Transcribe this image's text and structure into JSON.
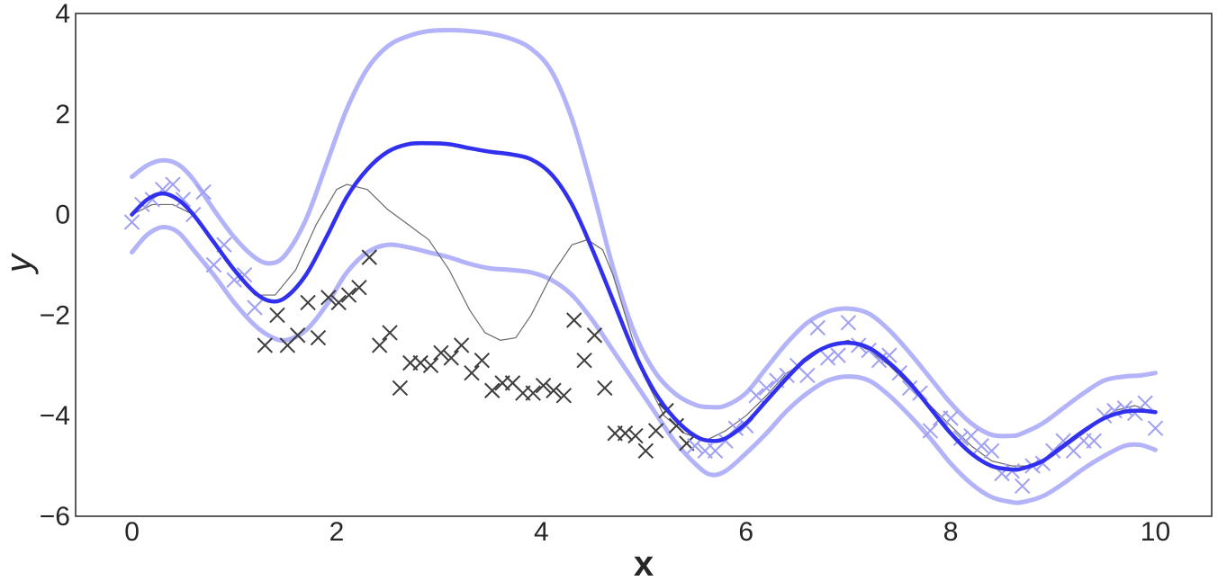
{
  "chart_data": {
    "type": "line",
    "title": "",
    "xlabel": "x",
    "ylabel": "y",
    "xlim": [
      -0.55,
      10.55
    ],
    "ylim": [
      -6,
      4
    ],
    "x_ticks": [
      0,
      2,
      4,
      6,
      8,
      10
    ],
    "y_ticks": [
      -6,
      -4,
      -2,
      0,
      2,
      4
    ],
    "x_tick_labels": [
      "0",
      "2",
      "4",
      "6",
      "8",
      "10"
    ],
    "y_tick_labels": [
      "−6",
      "−4",
      "−2",
      "0",
      "2",
      "4"
    ],
    "grid": false,
    "legend": "none",
    "colors": {
      "mean": "#3030ee",
      "band": "#b3b3f9",
      "true_function": "#6a6a6a",
      "observed_points": "#3d3d3d",
      "test_points": "#9f9ff5"
    },
    "series": [
      {
        "kind": "line",
        "role": "true_function",
        "x": [
          0,
          0.2,
          0.4,
          0.6,
          0.8,
          1.0,
          1.2,
          1.4,
          1.6,
          1.8,
          2.0,
          2.1,
          2.3,
          2.5,
          2.7,
          2.9,
          3.1,
          3.3,
          3.45,
          3.6,
          3.75,
          3.9,
          4.1,
          4.3,
          4.45,
          4.6,
          4.7,
          4.85,
          5.0,
          5.2,
          5.4,
          5.6,
          5.8,
          6.0,
          6.2,
          6.4,
          6.6,
          6.8,
          7.0,
          7.2,
          7.4,
          7.6,
          7.8,
          8.0,
          8.2,
          8.4,
          8.6,
          8.8,
          9.0,
          9.2,
          9.4,
          9.6,
          9.8,
          10.0
        ],
        "y": [
          0.0,
          0.2,
          0.2,
          0.0,
          -0.5,
          -1.1,
          -1.6,
          -1.6,
          -1.1,
          -0.2,
          0.5,
          0.6,
          0.5,
          0.1,
          -0.2,
          -0.5,
          -1.1,
          -1.9,
          -2.35,
          -2.5,
          -2.45,
          -2.0,
          -1.2,
          -0.6,
          -0.5,
          -0.7,
          -1.2,
          -2.2,
          -3.2,
          -4.0,
          -4.35,
          -4.5,
          -4.3,
          -4.0,
          -3.6,
          -3.15,
          -2.9,
          -2.6,
          -2.5,
          -2.7,
          -3.0,
          -3.4,
          -3.8,
          -4.2,
          -4.6,
          -4.9,
          -5.0,
          -5.0,
          -4.8,
          -4.5,
          -4.2,
          -3.9,
          -3.8,
          -3.95
        ]
      },
      {
        "kind": "line",
        "role": "mean",
        "x": [
          0,
          0.15,
          0.3,
          0.45,
          0.6,
          0.8,
          1.0,
          1.2,
          1.35,
          1.5,
          1.7,
          1.9,
          2.1,
          2.3,
          2.5,
          2.7,
          2.9,
          3.1,
          3.3,
          3.5,
          3.7,
          3.9,
          4.1,
          4.3,
          4.5,
          4.7,
          4.9,
          5.1,
          5.3,
          5.5,
          5.65,
          5.8,
          6.0,
          6.2,
          6.4,
          6.6,
          6.8,
          7.0,
          7.2,
          7.4,
          7.6,
          7.8,
          8.0,
          8.2,
          8.4,
          8.6,
          8.7,
          8.9,
          9.1,
          9.3,
          9.5,
          9.7,
          9.85,
          10.0
        ],
        "y": [
          0.0,
          0.3,
          0.42,
          0.3,
          0.0,
          -0.55,
          -1.1,
          -1.55,
          -1.72,
          -1.65,
          -1.2,
          -0.45,
          0.35,
          0.9,
          1.25,
          1.4,
          1.42,
          1.4,
          1.32,
          1.25,
          1.2,
          1.1,
          0.8,
          0.2,
          -0.7,
          -1.7,
          -2.7,
          -3.5,
          -4.05,
          -4.4,
          -4.5,
          -4.45,
          -4.15,
          -3.7,
          -3.25,
          -2.85,
          -2.62,
          -2.55,
          -2.65,
          -2.95,
          -3.35,
          -3.85,
          -4.35,
          -4.75,
          -5.0,
          -5.07,
          -5.05,
          -4.9,
          -4.6,
          -4.3,
          -4.05,
          -3.92,
          -3.9,
          -3.93
        ]
      },
      {
        "kind": "line",
        "role": "upper_band",
        "x": [
          0,
          0.15,
          0.3,
          0.45,
          0.6,
          0.8,
          1.0,
          1.2,
          1.35,
          1.5,
          1.7,
          1.9,
          2.1,
          2.3,
          2.5,
          2.7,
          2.9,
          3.1,
          3.3,
          3.5,
          3.7,
          3.9,
          4.1,
          4.3,
          4.5,
          4.7,
          4.9,
          5.1,
          5.3,
          5.5,
          5.65,
          5.8,
          6.0,
          6.2,
          6.4,
          6.6,
          6.8,
          7.0,
          7.2,
          7.4,
          7.6,
          7.8,
          8.0,
          8.2,
          8.4,
          8.6,
          8.7,
          8.9,
          9.1,
          9.3,
          9.5,
          9.7,
          9.85,
          10.0
        ],
        "y": [
          0.75,
          0.98,
          1.08,
          1.0,
          0.7,
          0.1,
          -0.45,
          -0.85,
          -0.97,
          -0.8,
          -0.1,
          1.0,
          2.1,
          2.9,
          3.35,
          3.55,
          3.65,
          3.67,
          3.65,
          3.6,
          3.5,
          3.3,
          2.85,
          1.9,
          0.5,
          -1.05,
          -2.3,
          -3.1,
          -3.55,
          -3.78,
          -3.83,
          -3.8,
          -3.55,
          -3.05,
          -2.55,
          -2.15,
          -1.93,
          -1.87,
          -1.97,
          -2.3,
          -2.75,
          -3.25,
          -3.75,
          -4.15,
          -4.38,
          -4.4,
          -4.35,
          -4.15,
          -3.85,
          -3.55,
          -3.3,
          -3.22,
          -3.2,
          -3.15
        ]
      },
      {
        "kind": "line",
        "role": "lower_band",
        "x": [
          0,
          0.15,
          0.3,
          0.45,
          0.6,
          0.8,
          1.0,
          1.2,
          1.35,
          1.5,
          1.7,
          1.9,
          2.1,
          2.3,
          2.5,
          2.7,
          2.9,
          3.1,
          3.3,
          3.5,
          3.7,
          3.9,
          4.1,
          4.3,
          4.5,
          4.7,
          4.9,
          5.1,
          5.3,
          5.5,
          5.65,
          5.8,
          6.0,
          6.2,
          6.4,
          6.6,
          6.8,
          7.0,
          7.2,
          7.4,
          7.6,
          7.8,
          8.0,
          8.2,
          8.4,
          8.6,
          8.7,
          8.9,
          9.1,
          9.3,
          9.5,
          9.7,
          9.85,
          10.0
        ],
        "y": [
          -0.75,
          -0.4,
          -0.25,
          -0.35,
          -0.7,
          -1.2,
          -1.75,
          -2.2,
          -2.42,
          -2.5,
          -2.3,
          -1.8,
          -1.15,
          -0.75,
          -0.6,
          -0.65,
          -0.75,
          -0.85,
          -0.98,
          -1.07,
          -1.1,
          -1.15,
          -1.3,
          -1.6,
          -2.1,
          -2.7,
          -3.3,
          -3.9,
          -4.5,
          -4.95,
          -5.17,
          -5.1,
          -4.75,
          -4.35,
          -3.9,
          -3.55,
          -3.3,
          -3.22,
          -3.3,
          -3.6,
          -4.0,
          -4.45,
          -4.95,
          -5.35,
          -5.62,
          -5.72,
          -5.72,
          -5.6,
          -5.35,
          -5.05,
          -4.8,
          -4.6,
          -4.58,
          -4.68
        ]
      },
      {
        "kind": "scatter",
        "role": "observed_points",
        "marker": "x",
        "x": [
          1.3,
          1.42,
          1.52,
          1.62,
          1.72,
          1.82,
          1.92,
          2.02,
          2.12,
          2.22,
          2.32,
          2.42,
          2.52,
          2.62,
          2.72,
          2.82,
          2.92,
          3.02,
          3.12,
          3.22,
          3.32,
          3.42,
          3.52,
          3.62,
          3.72,
          3.82,
          3.92,
          4.02,
          4.12,
          4.22,
          4.32,
          4.42,
          4.52,
          4.62,
          4.72,
          4.82,
          4.92,
          5.02,
          5.12,
          5.22,
          5.32,
          5.42
        ],
        "y": [
          -2.6,
          -2.0,
          -2.6,
          -2.4,
          -1.75,
          -2.45,
          -1.65,
          -1.75,
          -1.6,
          -1.45,
          -0.85,
          -2.6,
          -2.35,
          -3.45,
          -2.95,
          -2.95,
          -3.0,
          -2.75,
          -2.85,
          -2.6,
          -3.15,
          -2.9,
          -3.5,
          -3.35,
          -3.35,
          -3.55,
          -3.55,
          -3.4,
          -3.5,
          -3.6,
          -2.1,
          -2.9,
          -2.4,
          -3.45,
          -4.35,
          -4.35,
          -4.4,
          -4.7,
          -4.3,
          -3.9,
          -4.2,
          -4.55
        ]
      },
      {
        "kind": "scatter",
        "role": "test_points",
        "marker": "x",
        "x": [
          0.0,
          0.1,
          0.2,
          0.3,
          0.4,
          0.5,
          0.6,
          0.7,
          0.8,
          0.9,
          1.0,
          1.1,
          1.2,
          5.5,
          5.6,
          5.7,
          5.8,
          5.9,
          6.0,
          6.1,
          6.2,
          6.3,
          6.4,
          6.5,
          6.6,
          6.7,
          6.8,
          6.9,
          7.0,
          7.1,
          7.2,
          7.3,
          7.4,
          7.5,
          7.6,
          7.7,
          7.8,
          7.9,
          8.0,
          8.1,
          8.2,
          8.3,
          8.4,
          8.5,
          8.6,
          8.7,
          8.8,
          8.9,
          9.0,
          9.1,
          9.2,
          9.3,
          9.4,
          9.5,
          9.6,
          9.7,
          9.8,
          9.9,
          10.0
        ],
        "y": [
          -0.15,
          0.2,
          0.3,
          0.5,
          0.6,
          0.3,
          0.0,
          0.45,
          -1.0,
          -0.6,
          -1.3,
          -1.2,
          -1.85,
          -4.6,
          -4.7,
          -4.7,
          -4.5,
          -4.25,
          -4.2,
          -3.6,
          -3.45,
          -3.3,
          -3.2,
          -3.0,
          -3.2,
          -2.25,
          -2.85,
          -2.8,
          -2.15,
          -2.6,
          -2.7,
          -2.9,
          -2.8,
          -3.15,
          -3.45,
          -3.55,
          -4.3,
          -4.05,
          -4.05,
          -4.45,
          -4.4,
          -4.6,
          -4.7,
          -5.15,
          -5.1,
          -5.4,
          -5.0,
          -4.95,
          -4.7,
          -4.5,
          -4.7,
          -4.5,
          -4.5,
          -4.0,
          -3.9,
          -3.85,
          -3.95,
          -3.75,
          -4.25
        ]
      }
    ]
  }
}
